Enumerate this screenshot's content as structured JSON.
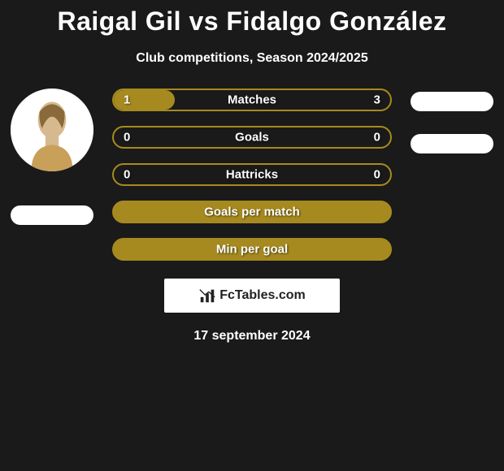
{
  "title": "Raigal Gil vs Fidalgo González",
  "subtitle": "Club competitions, Season 2024/2025",
  "date": "17 september 2024",
  "watermark": "FcTables.com",
  "colors": {
    "background": "#1a1a1a",
    "accent": "#a68a1f",
    "bar_bg": "#1a1a1a",
    "pill": "#ffffff",
    "text": "#ffffff"
  },
  "left_player": {
    "has_photo": true
  },
  "right_player": {
    "has_photo": false
  },
  "bars": [
    {
      "label": "Matches",
      "left": "1",
      "right": "3",
      "fill_from": "left",
      "fill_pct": 22,
      "show_values": true
    },
    {
      "label": "Goals",
      "left": "0",
      "right": "0",
      "fill_from": "none",
      "fill_pct": 0,
      "show_values": true
    },
    {
      "label": "Hattricks",
      "left": "0",
      "right": "0",
      "fill_from": "none",
      "fill_pct": 0,
      "show_values": true
    },
    {
      "label": "Goals per match",
      "left": "",
      "right": "",
      "fill_from": "full",
      "fill_pct": 100,
      "show_values": false
    },
    {
      "label": "Min per goal",
      "left": "",
      "right": "",
      "fill_from": "full",
      "fill_pct": 100,
      "show_values": false
    }
  ],
  "bar_style": {
    "height": 28,
    "border_radius": 14,
    "border_width": 2,
    "label_fontsize": 15,
    "label_weight": 700
  }
}
